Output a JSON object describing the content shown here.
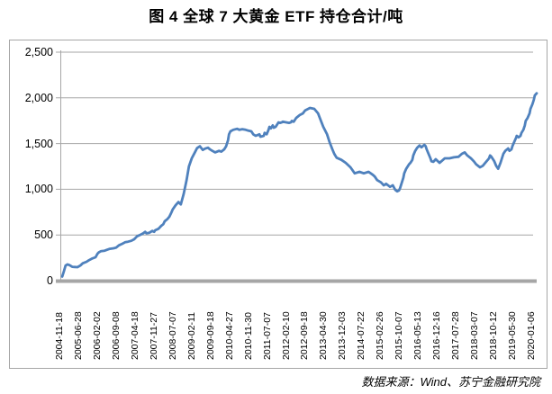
{
  "title": "图 4  全球 7 大黄金 ETF 持仓合计/吨",
  "source_note": "数据来源：Wind、苏宁金融研究院",
  "chart_data": {
    "type": "line",
    "title": "图 4 全球 7 大黄金 ETF 持仓合计/吨",
    "unit": "吨",
    "xlabel": "",
    "ylabel": "",
    "ylim": [
      0,
      2500
    ],
    "ytick_interval": 500,
    "ytick_labels": [
      "0",
      "500",
      "1,000",
      "1,500",
      "2,000",
      "2,500"
    ],
    "grid": true,
    "legend": "none",
    "line_color": "#4F81BD",
    "grid_color": "#a6a6a6",
    "x_tick_labels": [
      "2004-11-18",
      "2005-06-28",
      "2006-02-02",
      "2006-09-08",
      "2007-04-18",
      "2007-11-27",
      "2008-07-07",
      "2009-02-11",
      "2009-09-18",
      "2010-04-27",
      "2010-11-30",
      "2011-07-07",
      "2012-02-10",
      "2012-09-18",
      "2013-04-30",
      "2013-12-03",
      "2014-07-22",
      "2015-02-26",
      "2015-10-07",
      "2016-05-13",
      "2016-12-16",
      "2017-07-28",
      "2018-03-07",
      "2018-10-12",
      "2019-05-30",
      "2020-01-06"
    ],
    "series": [
      {
        "name": "全球7大黄金ETF持仓合计",
        "x_unit": "percent_of_time_axis",
        "points": [
          [
            0.4,
            45
          ],
          [
            0.8,
            110
          ],
          [
            1.1,
            165
          ],
          [
            1.5,
            178
          ],
          [
            1.9,
            170
          ],
          [
            2.5,
            152
          ],
          [
            3.0,
            150
          ],
          [
            3.6,
            148
          ],
          [
            4.2,
            165
          ],
          [
            4.7,
            190
          ],
          [
            5.5,
            207
          ],
          [
            6.0,
            223
          ],
          [
            6.6,
            240
          ],
          [
            7.4,
            256
          ],
          [
            7.8,
            295
          ],
          [
            8.1,
            310
          ],
          [
            8.5,
            322
          ],
          [
            9.3,
            328
          ],
          [
            9.8,
            338
          ],
          [
            10.4,
            348
          ],
          [
            11.2,
            354
          ],
          [
            11.7,
            361
          ],
          [
            12.3,
            387
          ],
          [
            13.0,
            404
          ],
          [
            13.6,
            420
          ],
          [
            14.2,
            426
          ],
          [
            14.9,
            436
          ],
          [
            15.5,
            453
          ],
          [
            16.1,
            485
          ],
          [
            16.8,
            502
          ],
          [
            17.4,
            518
          ],
          [
            17.8,
            534
          ],
          [
            18.1,
            518
          ],
          [
            18.7,
            525
          ],
          [
            19.3,
            544
          ],
          [
            19.7,
            534
          ],
          [
            19.9,
            551
          ],
          [
            20.6,
            568
          ],
          [
            21.2,
            600
          ],
          [
            21.6,
            617
          ],
          [
            21.9,
            650
          ],
          [
            22.5,
            675
          ],
          [
            22.9,
            700
          ],
          [
            23.3,
            745
          ],
          [
            23.6,
            780
          ],
          [
            24.2,
            825
          ],
          [
            24.8,
            860
          ],
          [
            25.3,
            835
          ],
          [
            25.9,
            950
          ],
          [
            26.5,
            1100
          ],
          [
            27.0,
            1250
          ],
          [
            27.6,
            1340
          ],
          [
            28.2,
            1400
          ],
          [
            28.7,
            1450
          ],
          [
            29.3,
            1470
          ],
          [
            29.9,
            1430
          ],
          [
            30.4,
            1445
          ],
          [
            31.0,
            1455
          ],
          [
            31.4,
            1437
          ],
          [
            31.9,
            1420
          ],
          [
            32.5,
            1404
          ],
          [
            33.3,
            1420
          ],
          [
            33.8,
            1411
          ],
          [
            34.4,
            1437
          ],
          [
            34.8,
            1470
          ],
          [
            35.2,
            1535
          ],
          [
            35.4,
            1601
          ],
          [
            35.7,
            1634
          ],
          [
            36.3,
            1651
          ],
          [
            37.1,
            1661
          ],
          [
            37.6,
            1651
          ],
          [
            38.2,
            1657
          ],
          [
            38.9,
            1651
          ],
          [
            39.5,
            1641
          ],
          [
            40.1,
            1634
          ],
          [
            40.5,
            1601
          ],
          [
            41.0,
            1585
          ],
          [
            41.8,
            1601
          ],
          [
            42.0,
            1575
          ],
          [
            42.7,
            1585
          ],
          [
            42.9,
            1617
          ],
          [
            43.3,
            1601
          ],
          [
            43.7,
            1651
          ],
          [
            43.9,
            1683
          ],
          [
            44.2,
            1666
          ],
          [
            44.6,
            1699
          ],
          [
            44.8,
            1673
          ],
          [
            45.2,
            1683
          ],
          [
            45.6,
            1716
          ],
          [
            45.8,
            1732
          ],
          [
            46.1,
            1726
          ],
          [
            46.5,
            1732
          ],
          [
            46.7,
            1739
          ],
          [
            47.4,
            1732
          ],
          [
            48.0,
            1726
          ],
          [
            48.4,
            1732
          ],
          [
            48.6,
            1748
          ],
          [
            49.0,
            1739
          ],
          [
            49.5,
            1781
          ],
          [
            50.3,
            1814
          ],
          [
            50.9,
            1830
          ],
          [
            51.4,
            1863
          ],
          [
            52.4,
            1890
          ],
          [
            53.3,
            1880
          ],
          [
            54.1,
            1831
          ],
          [
            54.6,
            1765
          ],
          [
            55.2,
            1683
          ],
          [
            56.0,
            1601
          ],
          [
            56.5,
            1519
          ],
          [
            57.1,
            1437
          ],
          [
            57.5,
            1388
          ],
          [
            58.0,
            1345
          ],
          [
            59.0,
            1322
          ],
          [
            59.9,
            1289
          ],
          [
            60.9,
            1240
          ],
          [
            61.8,
            1174
          ],
          [
            62.8,
            1191
          ],
          [
            63.7,
            1174
          ],
          [
            64.7,
            1191
          ],
          [
            65.6,
            1158
          ],
          [
            66.0,
            1140
          ],
          [
            66.5,
            1100
          ],
          [
            67.3,
            1076
          ],
          [
            67.9,
            1043
          ],
          [
            68.4,
            1060
          ],
          [
            69.2,
            1027
          ],
          [
            69.8,
            1043
          ],
          [
            70.3,
            994
          ],
          [
            70.7,
            977
          ],
          [
            71.1,
            987
          ],
          [
            71.3,
            1010
          ],
          [
            71.6,
            1060
          ],
          [
            72.0,
            1125
          ],
          [
            72.2,
            1174
          ],
          [
            72.6,
            1224
          ],
          [
            73.2,
            1273
          ],
          [
            73.5,
            1289
          ],
          [
            73.9,
            1322
          ],
          [
            74.1,
            1371
          ],
          [
            74.5,
            1420
          ],
          [
            74.9,
            1453
          ],
          [
            75.4,
            1479
          ],
          [
            75.8,
            1459
          ],
          [
            76.4,
            1486
          ],
          [
            76.7,
            1470
          ],
          [
            76.9,
            1437
          ],
          [
            77.3,
            1388
          ],
          [
            77.7,
            1339
          ],
          [
            77.9,
            1306
          ],
          [
            78.3,
            1300
          ],
          [
            78.8,
            1329
          ],
          [
            79.6,
            1289
          ],
          [
            80.2,
            1316
          ],
          [
            80.7,
            1339
          ],
          [
            81.7,
            1339
          ],
          [
            82.6,
            1349
          ],
          [
            83.6,
            1355
          ],
          [
            84.3,
            1388
          ],
          [
            84.9,
            1404
          ],
          [
            85.4,
            1371
          ],
          [
            86.2,
            1339
          ],
          [
            86.8,
            1306
          ],
          [
            87.3,
            1273
          ],
          [
            88.1,
            1240
          ],
          [
            88.7,
            1257
          ],
          [
            89.2,
            1289
          ],
          [
            90.0,
            1339
          ],
          [
            90.2,
            1370
          ],
          [
            90.5,
            1355
          ],
          [
            91.1,
            1306
          ],
          [
            91.5,
            1257
          ],
          [
            91.9,
            1224
          ],
          [
            92.4,
            1289
          ],
          [
            93.0,
            1388
          ],
          [
            93.4,
            1420
          ],
          [
            93.8,
            1437
          ],
          [
            94.0,
            1447
          ],
          [
            94.3,
            1420
          ],
          [
            94.7,
            1437
          ],
          [
            94.9,
            1470
          ],
          [
            95.3,
            1519
          ],
          [
            95.7,
            1568
          ],
          [
            95.8,
            1585
          ],
          [
            96.2,
            1568
          ],
          [
            96.6,
            1585
          ],
          [
            96.8,
            1617
          ],
          [
            97.2,
            1651
          ],
          [
            97.5,
            1699
          ],
          [
            97.7,
            1748
          ],
          [
            98.1,
            1781
          ],
          [
            98.5,
            1831
          ],
          [
            98.7,
            1880
          ],
          [
            99.1,
            1929
          ],
          [
            99.4,
            1978
          ],
          [
            99.6,
            2027
          ],
          [
            100,
            2050
          ]
        ]
      }
    ]
  }
}
